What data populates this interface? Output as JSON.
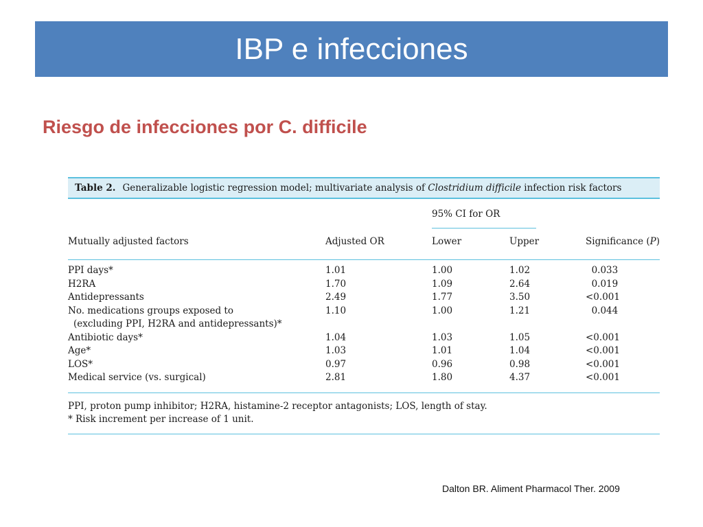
{
  "slide": {
    "title": "IBP e infecciones",
    "subtitle": "Riesgo de infecciones por C. difficile",
    "citation": "Dalton BR. Aliment Pharmacol Ther. 2009"
  },
  "table": {
    "caption_lead": "Table 2.",
    "caption_pre": "Generalizable logistic regression model; multivariate analysis of ",
    "caption_italic": "Clostridium difficile",
    "caption_post": " infection risk factors",
    "ci_header": "95% CI for OR",
    "headers": {
      "factor": "Mutually adjusted factors",
      "or": "Adjusted OR",
      "lower": "Lower",
      "upper": "Upper",
      "sig": "Significance (P)"
    },
    "rows": [
      {
        "factor": "PPI days*",
        "or": "1.01",
        "lower": "1.00",
        "upper": "1.02",
        "sig": "  0.033"
      },
      {
        "factor": "H2RA",
        "or": "1.70",
        "lower": "1.09",
        "upper": "2.64",
        "sig": "  0.019"
      },
      {
        "factor": "Antidepressants",
        "or": "2.49",
        "lower": "1.77",
        "upper": "3.50",
        "sig": "<0.001"
      },
      {
        "factor": "No. medications groups exposed to",
        "or": "1.10",
        "lower": "1.00",
        "upper": "1.21",
        "sig": "  0.044"
      },
      {
        "factor": "(excluding PPI, H2RA and antidepressants)*",
        "or": "",
        "lower": "",
        "upper": "",
        "sig": ""
      },
      {
        "factor": "Antibiotic days*",
        "or": "1.04",
        "lower": "1.03",
        "upper": "1.05",
        "sig": "<0.001"
      },
      {
        "factor": "Age*",
        "or": "1.03",
        "lower": "1.01",
        "upper": "1.04",
        "sig": "<0.001"
      },
      {
        "factor": "LOS*",
        "or": "0.97",
        "lower": "0.96",
        "upper": "0.98",
        "sig": "<0.001"
      },
      {
        "factor": "Medical service (vs. surgical)",
        "or": "2.81",
        "lower": "1.80",
        "upper": "4.37",
        "sig": "<0.001"
      }
    ],
    "footnotes": [
      "PPI, proton pump inhibitor; H2RA, histamine-2 receptor antagonists; LOS, length of stay.",
      "* Risk increment per increase of 1 unit."
    ]
  }
}
